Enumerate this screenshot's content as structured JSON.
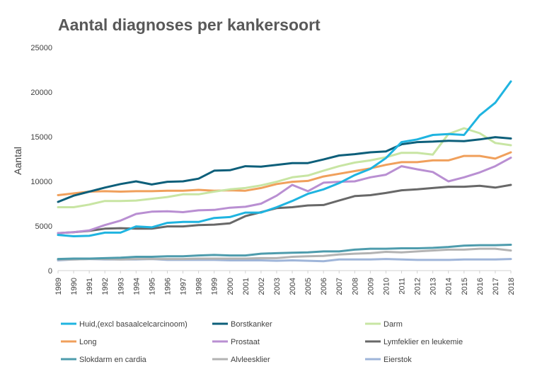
{
  "chart_data": {
    "type": "line",
    "title": "Aantal diagnoses per kankersoort",
    "ylabel": "Aantal",
    "xlabel": "",
    "ylim": [
      0,
      25000
    ],
    "yticks": [
      0,
      5000,
      10000,
      15000,
      20000,
      25000
    ],
    "grid": false,
    "legend_position": "bottom",
    "x": [
      "1989",
      "1990",
      "1991",
      "1992",
      "1993",
      "1994",
      "1995",
      "1996",
      "1997",
      "1998",
      "1999",
      "2000",
      "2001",
      "2002",
      "2003",
      "2004",
      "2005",
      "2006",
      "2007",
      "2008",
      "2009",
      "2010",
      "2011",
      "2012",
      "2013",
      "2014",
      "2015",
      "2016",
      "2017",
      "2018"
    ],
    "series": [
      {
        "name": "Huid,(excl basaalcelcarcinoom)",
        "color": "#1fb4e0",
        "values": [
          4000,
          3850,
          3900,
          4250,
          4250,
          4950,
          4850,
          5350,
          5450,
          5450,
          5900,
          6000,
          6500,
          6500,
          7100,
          7800,
          8600,
          9100,
          9800,
          10700,
          11400,
          12600,
          14400,
          14700,
          15200,
          15300,
          15200,
          17400,
          18800,
          21200
        ]
      },
      {
        "name": "Borstkanker",
        "color": "#0d5f7a",
        "values": [
          7700,
          8400,
          8850,
          9300,
          9700,
          10000,
          9650,
          9950,
          10000,
          10300,
          11200,
          11250,
          11700,
          11650,
          11850,
          12050,
          12050,
          12450,
          12900,
          13050,
          13250,
          13350,
          14150,
          14400,
          14450,
          14550,
          14500,
          14700,
          14950,
          14800
        ]
      },
      {
        "name": "Darm",
        "color": "#c8e5a3",
        "values": [
          7100,
          7100,
          7400,
          7800,
          7800,
          7850,
          8050,
          8250,
          8550,
          8550,
          8850,
          9100,
          9250,
          9550,
          9950,
          10450,
          10650,
          11200,
          11700,
          12100,
          12350,
          12700,
          13200,
          13200,
          13000,
          15300,
          15950,
          15400,
          14300,
          14050
        ]
      },
      {
        "name": "Long",
        "color": "#f0a05c",
        "values": [
          8450,
          8650,
          8850,
          8900,
          8850,
          8900,
          8900,
          8950,
          8950,
          9050,
          8950,
          9000,
          8950,
          9250,
          9700,
          9950,
          10050,
          10550,
          10850,
          11150,
          11450,
          11850,
          12150,
          12150,
          12350,
          12350,
          12850,
          12850,
          12550,
          13250
        ]
      },
      {
        "name": "Prostaat",
        "color": "#b98fd2",
        "values": [
          4200,
          4300,
          4500,
          5100,
          5600,
          6350,
          6600,
          6650,
          6550,
          6750,
          6800,
          7050,
          7150,
          7500,
          8400,
          9600,
          8900,
          9850,
          9950,
          10000,
          10450,
          10750,
          11700,
          11350,
          11050,
          10000,
          10450,
          11000,
          11700,
          12650
        ]
      },
      {
        "name": "Lymfeklier en leukemie",
        "color": "#686868",
        "values": [
          4200,
          4300,
          4450,
          4700,
          4750,
          4700,
          4700,
          4950,
          4950,
          5100,
          5150,
          5300,
          6100,
          6550,
          7000,
          7100,
          7300,
          7350,
          7850,
          8350,
          8450,
          8700,
          9000,
          9100,
          9250,
          9400,
          9400,
          9500,
          9300,
          9600
        ]
      },
      {
        "name": "Slokdarm en cardia",
        "color": "#4e9cad",
        "values": [
          1300,
          1350,
          1350,
          1400,
          1450,
          1550,
          1550,
          1600,
          1600,
          1700,
          1750,
          1700,
          1700,
          1900,
          1950,
          2000,
          2050,
          2150,
          2150,
          2350,
          2450,
          2450,
          2500,
          2500,
          2550,
          2650,
          2800,
          2850,
          2850,
          2900
        ]
      },
      {
        "name": "Alvleesklier",
        "color": "#b3b3b3",
        "values": [
          1250,
          1250,
          1300,
          1300,
          1250,
          1300,
          1300,
          1300,
          1300,
          1350,
          1350,
          1350,
          1350,
          1400,
          1400,
          1550,
          1600,
          1650,
          1800,
          1900,
          1950,
          2100,
          2050,
          2150,
          2250,
          2350,
          2350,
          2450,
          2450,
          2250
        ]
      },
      {
        "name": "Eierstok",
        "color": "#9fb5d9",
        "values": [
          1150,
          1250,
          1300,
          1250,
          1250,
          1250,
          1300,
          1200,
          1200,
          1200,
          1200,
          1150,
          1150,
          1150,
          1100,
          1150,
          1100,
          1050,
          1250,
          1250,
          1250,
          1300,
          1250,
          1200,
          1200,
          1200,
          1250,
          1250,
          1250,
          1300
        ]
      }
    ]
  }
}
